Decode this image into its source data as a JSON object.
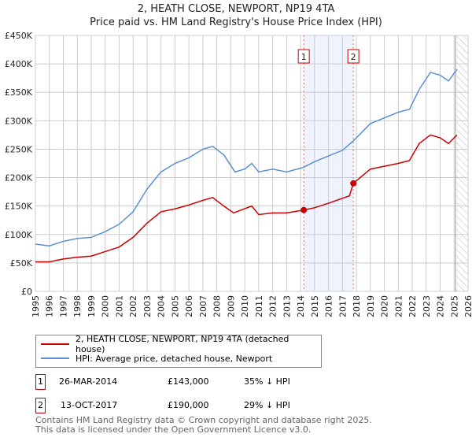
{
  "title_line1": "2, HEATH CLOSE, NEWPORT, NP19 4TA",
  "title_line2": "Price paid vs. HM Land Registry's House Price Index (HPI)",
  "chart_data": {
    "type": "line",
    "xlim": [
      1995,
      2026
    ],
    "ylim": [
      0,
      450000
    ],
    "x_ticks": [
      "1995",
      "1996",
      "1997",
      "1998",
      "1999",
      "2000",
      "2001",
      "2002",
      "2003",
      "2004",
      "2005",
      "2006",
      "2007",
      "2008",
      "2009",
      "2010",
      "2011",
      "2012",
      "2013",
      "2014",
      "2015",
      "2016",
      "2017",
      "2018",
      "2019",
      "2020",
      "2021",
      "2022",
      "2023",
      "2024",
      "2025",
      "2026"
    ],
    "y_ticks": [
      {
        "v": 0,
        "label": "£0"
      },
      {
        "v": 50000,
        "label": "£50K"
      },
      {
        "v": 100000,
        "label": "£100K"
      },
      {
        "v": 150000,
        "label": "£150K"
      },
      {
        "v": 200000,
        "label": "£200K"
      },
      {
        "v": 250000,
        "label": "£250K"
      },
      {
        "v": 300000,
        "label": "£300K"
      },
      {
        "v": 350000,
        "label": "£350K"
      },
      {
        "v": 400000,
        "label": "£400K"
      },
      {
        "v": 450000,
        "label": "£450K"
      }
    ],
    "grid": true,
    "shaded_range": [
      2014.23,
      2017.78
    ],
    "forecast_hatch_from": 2025.1,
    "series": [
      {
        "name": "2, HEATH CLOSE, NEWPORT, NP19 4TA (detached house)",
        "color": "#cc0000",
        "x": [
          1995,
          1996,
          1997,
          1998,
          1999,
          2000,
          2001,
          2002,
          2003,
          2004,
          2005,
          2006,
          2007,
          2007.7,
          2008.5,
          2009.2,
          2010.5,
          2011,
          2012,
          2013,
          2014.23,
          2015,
          2016,
          2017.5,
          2017.78,
          2019,
          2020,
          2021,
          2021.8,
          2022.5,
          2023.3,
          2024,
          2024.6,
          2025.2
        ],
        "y": [
          52000,
          52000,
          57000,
          60000,
          62000,
          70000,
          78000,
          95000,
          120000,
          140000,
          145000,
          152000,
          160000,
          165000,
          150000,
          138000,
          150000,
          135000,
          138000,
          138000,
          143000,
          147000,
          155000,
          168000,
          190000,
          215000,
          220000,
          225000,
          230000,
          260000,
          275000,
          270000,
          260000,
          275000
        ]
      },
      {
        "name": "HPI: Average price, detached house, Newport",
        "color": "#5b8fd4",
        "x": [
          1995,
          1996,
          1997,
          1998,
          1999,
          2000,
          2001,
          2002,
          2003,
          2004,
          2005,
          2006,
          2007,
          2007.7,
          2008.5,
          2009.3,
          2010,
          2010.5,
          2011,
          2012,
          2013,
          2014.2,
          2015,
          2016,
          2017,
          2017.8,
          2019,
          2020,
          2021,
          2021.8,
          2022.5,
          2023.3,
          2024,
          2024.6,
          2025.2
        ],
        "y": [
          83000,
          80000,
          88000,
          93000,
          95000,
          105000,
          118000,
          140000,
          180000,
          210000,
          225000,
          235000,
          250000,
          255000,
          240000,
          210000,
          215000,
          225000,
          210000,
          215000,
          210000,
          218000,
          228000,
          238000,
          248000,
          265000,
          295000,
          305000,
          315000,
          320000,
          355000,
          385000,
          380000,
          370000,
          390000
        ]
      }
    ],
    "annotations": [
      {
        "label": "1",
        "x": 2014.23,
        "y": 143000
      },
      {
        "label": "2",
        "x": 2017.78,
        "y": 190000
      }
    ]
  },
  "legend": [
    "2, HEATH CLOSE, NEWPORT, NP19 4TA (detached house)",
    "HPI: Average price, detached house, Newport"
  ],
  "transactions": [
    {
      "num": "1",
      "date": "26-MAR-2014",
      "price": "£143,000",
      "hpi": "35% ↓ HPI"
    },
    {
      "num": "2",
      "date": "13-OCT-2017",
      "price": "£190,000",
      "hpi": "29% ↓ HPI"
    }
  ],
  "footer_line1": "Contains HM Land Registry data © Crown copyright and database right 2025.",
  "footer_line2": "This data is licensed under the Open Government Licence v3.0."
}
